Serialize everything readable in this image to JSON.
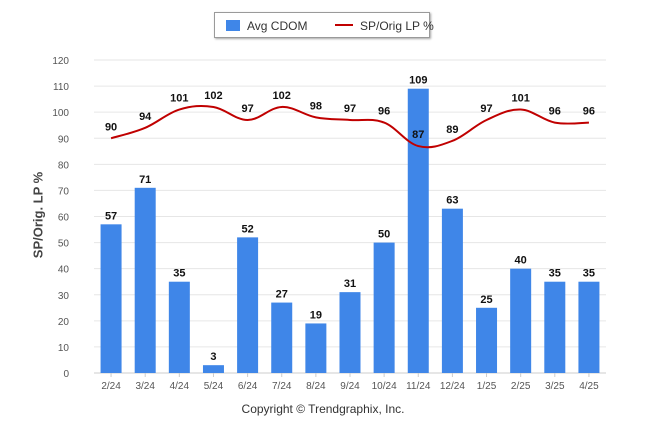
{
  "legend": {
    "series1": "Avg CDOM",
    "series2": "SP/Orig LP %"
  },
  "footer": "Copyright © Trendgraphix, Inc.",
  "colors": {
    "bar": "#3f86e8",
    "line": "#c00000",
    "grid": "#e6e6e6",
    "axis_text": "#555555"
  },
  "chart_data": {
    "type": "bar",
    "ylabel": "SP/Orig. LP %",
    "ylim": [
      0,
      120
    ],
    "yticks": [
      0,
      10,
      20,
      30,
      40,
      50,
      60,
      70,
      80,
      90,
      100,
      110,
      120
    ],
    "grid": true,
    "legend_position": "top-center",
    "categories": [
      "2/24",
      "3/24",
      "4/24",
      "5/24",
      "6/24",
      "7/24",
      "8/24",
      "9/24",
      "10/24",
      "11/24",
      "12/24",
      "1/25",
      "2/25",
      "3/25",
      "4/25"
    ],
    "series": [
      {
        "name": "Avg CDOM",
        "type": "bar",
        "values": [
          57,
          71,
          35,
          3,
          52,
          27,
          19,
          31,
          50,
          109,
          63,
          25,
          40,
          35,
          35
        ]
      },
      {
        "name": "SP/Orig LP %",
        "type": "line",
        "values": [
          90,
          94,
          101,
          102,
          97,
          102,
          98,
          97,
          96,
          87,
          89,
          97,
          101,
          96,
          96
        ]
      }
    ]
  }
}
